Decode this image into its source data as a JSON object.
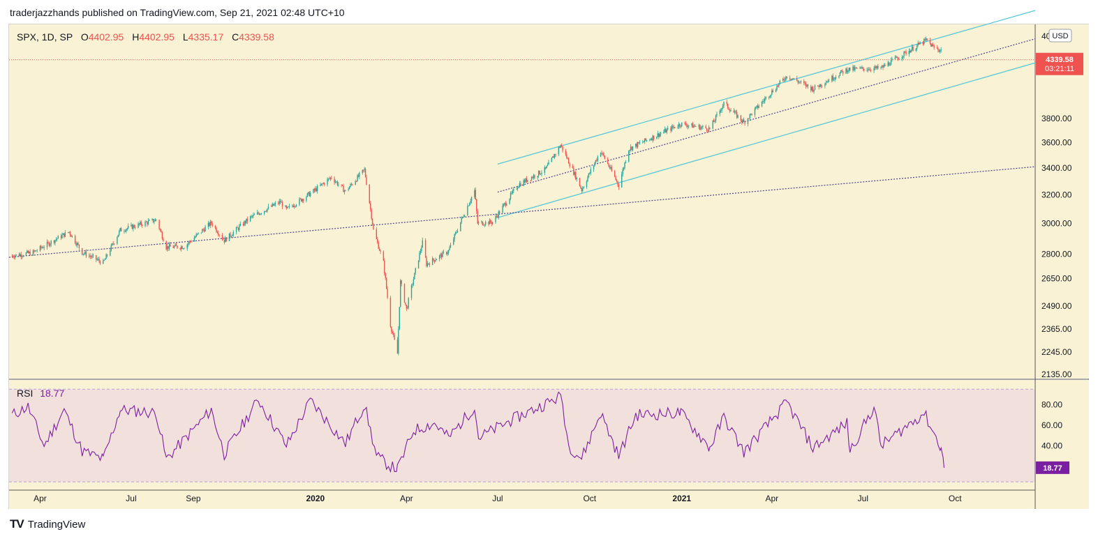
{
  "header": {
    "attribution": "traderjazzhands published on TradingView.com, Sep 21, 2021 02:48 UTC+10"
  },
  "footer": {
    "logo_mark": "TV",
    "brand": "TradingView"
  },
  "colors": {
    "bg": "#f9f2d4",
    "rsi_bg": "#f2e0dc",
    "up": "#26a69a",
    "down": "#ef5350",
    "channel": "#56c8d8",
    "trend": "#4a3f8c",
    "rsi": "#7b1fa2",
    "last_price": "#ef5350"
  },
  "chart_data": [
    {
      "type": "candlestick",
      "symbol": "SPX",
      "interval": "1D",
      "exchange": "SP",
      "ohlc_label": {
        "o_label": "O",
        "o": "4402.95",
        "h_label": "H",
        "h": "4402.95",
        "l_label": "L",
        "l": "4335.17",
        "c_label": "C",
        "c": "4339.58"
      },
      "currency": "USD",
      "last_price": "4339.58",
      "countdown": "03:21:11",
      "scale": "log",
      "y_ticks": [
        "3800.00",
        "3600.00",
        "3400.00",
        "3200.00",
        "3000.00",
        "2800.00",
        "2650.00",
        "2490.00",
        "2365.00",
        "2245.00",
        "2135.00"
      ],
      "y_top_partial": "40",
      "x_ticks": [
        "Apr",
        "Jul",
        "Sep",
        "2020",
        "Apr",
        "Jul",
        "Oct",
        "2021",
        "Apr",
        "Jul",
        "Oct"
      ],
      "x_ticks_bold": [
        false,
        false,
        false,
        true,
        false,
        false,
        false,
        true,
        false,
        false,
        false
      ],
      "x_tick_dates": [
        "2019-04-01",
        "2019-07-01",
        "2019-09-01",
        "2020-01-01",
        "2020-04-01",
        "2020-07-01",
        "2020-10-01",
        "2021-01-01",
        "2021-04-01",
        "2021-07-01",
        "2021-10-01"
      ],
      "close_path": [
        [
          "2019-03-04",
          2790
        ],
        [
          "2019-03-25",
          2810
        ],
        [
          "2019-04-30",
          2945
        ],
        [
          "2019-05-13",
          2812
        ],
        [
          "2019-06-03",
          2745
        ],
        [
          "2019-06-20",
          2955
        ],
        [
          "2019-07-26",
          3025
        ],
        [
          "2019-08-05",
          2845
        ],
        [
          "2019-08-23",
          2848
        ],
        [
          "2019-09-19",
          3005
        ],
        [
          "2019-10-02",
          2888
        ],
        [
          "2019-10-28",
          3040
        ],
        [
          "2019-11-27",
          3150
        ],
        [
          "2019-12-03",
          3095
        ],
        [
          "2019-12-31",
          3231
        ],
        [
          "2020-01-17",
          3330
        ],
        [
          "2020-01-31",
          3225
        ],
        [
          "2020-02-19",
          3386
        ],
        [
          "2020-02-28",
          2955
        ],
        [
          "2020-03-09",
          2746
        ],
        [
          "2020-03-16",
          2386
        ],
        [
          "2020-03-23",
          2237
        ],
        [
          "2020-03-26",
          2630
        ],
        [
          "2020-04-01",
          2471
        ],
        [
          "2020-04-17",
          2875
        ],
        [
          "2020-04-21",
          2737
        ],
        [
          "2020-05-13",
          2820
        ],
        [
          "2020-06-08",
          3232
        ],
        [
          "2020-06-11",
          3002
        ],
        [
          "2020-06-26",
          3010
        ],
        [
          "2020-07-22",
          3276
        ],
        [
          "2020-08-18",
          3390
        ],
        [
          "2020-09-02",
          3580
        ],
        [
          "2020-09-23",
          3237
        ],
        [
          "2020-10-12",
          3534
        ],
        [
          "2020-10-30",
          3270
        ],
        [
          "2020-11-09",
          3550
        ],
        [
          "2020-12-31",
          3756
        ],
        [
          "2021-01-29",
          3714
        ],
        [
          "2021-02-12",
          3934
        ],
        [
          "2021-03-04",
          3768
        ],
        [
          "2021-04-16",
          4185
        ],
        [
          "2021-05-12",
          4063
        ],
        [
          "2021-06-15",
          4246
        ],
        [
          "2021-07-19",
          4258
        ],
        [
          "2021-08-31",
          4522
        ],
        [
          "2021-09-02",
          4537
        ],
        [
          "2021-09-10",
          4458
        ],
        [
          "2021-09-17",
          4432
        ],
        [
          "2021-09-20",
          4339.58
        ]
      ],
      "trendlines": [
        {
          "style": "solid",
          "from": [
            "2020-07-01",
            3430
          ],
          "to": [
            "2021-12-20",
            4850
          ]
        },
        {
          "style": "solid",
          "from": [
            "2020-07-01",
            3040
          ],
          "to": [
            "2021-12-20",
            4310
          ]
        },
        {
          "style": "dotted",
          "from": [
            "2020-07-01",
            3220
          ],
          "to": [
            "2021-12-20",
            4550
          ]
        },
        {
          "style": "dotted",
          "from": [
            "2019-03-01",
            2780
          ],
          "to": [
            "2021-12-20",
            3410
          ]
        }
      ]
    },
    {
      "type": "line",
      "indicator": "RSI",
      "label": "RSI",
      "value": "18.77",
      "y_ticks": [
        "80.00",
        "60.00",
        "40.00"
      ],
      "bands": [
        30,
        70
      ],
      "series_path": [
        [
          "2019-03-04",
          70
        ],
        [
          "2019-03-20",
          78
        ],
        [
          "2019-04-05",
          40
        ],
        [
          "2019-04-25",
          75
        ],
        [
          "2019-05-13",
          35
        ],
        [
          "2019-06-03",
          27
        ],
        [
          "2019-06-20",
          75
        ],
        [
          "2019-07-26",
          72
        ],
        [
          "2019-08-05",
          27
        ],
        [
          "2019-09-19",
          75
        ],
        [
          "2019-10-02",
          32
        ],
        [
          "2019-11-05",
          85
        ],
        [
          "2019-12-03",
          40
        ],
        [
          "2019-12-27",
          84
        ],
        [
          "2020-01-31",
          42
        ],
        [
          "2020-02-19",
          80
        ],
        [
          "2020-03-02",
          30
        ],
        [
          "2020-03-16",
          20
        ],
        [
          "2020-03-23",
          17
        ],
        [
          "2020-04-08",
          55
        ],
        [
          "2020-04-29",
          62
        ],
        [
          "2020-05-13",
          48
        ],
        [
          "2020-06-08",
          78
        ],
        [
          "2020-06-12",
          48
        ],
        [
          "2020-07-15",
          65
        ],
        [
          "2020-08-31",
          87
        ],
        [
          "2020-09-02",
          92
        ],
        [
          "2020-09-10",
          40
        ],
        [
          "2020-09-23",
          28
        ],
        [
          "2020-10-12",
          72
        ],
        [
          "2020-10-30",
          30
        ],
        [
          "2020-11-16",
          70
        ],
        [
          "2020-12-31",
          72
        ],
        [
          "2021-01-29",
          38
        ],
        [
          "2021-02-12",
          68
        ],
        [
          "2021-03-04",
          34
        ],
        [
          "2021-04-16",
          82
        ],
        [
          "2021-05-12",
          38
        ],
        [
          "2021-06-15",
          62
        ],
        [
          "2021-06-18",
          35
        ],
        [
          "2021-07-12",
          78
        ],
        [
          "2021-07-19",
          40
        ],
        [
          "2021-08-31",
          72
        ],
        [
          "2021-09-02",
          68
        ],
        [
          "2021-09-17",
          38
        ],
        [
          "2021-09-20",
          18.77
        ]
      ]
    }
  ]
}
